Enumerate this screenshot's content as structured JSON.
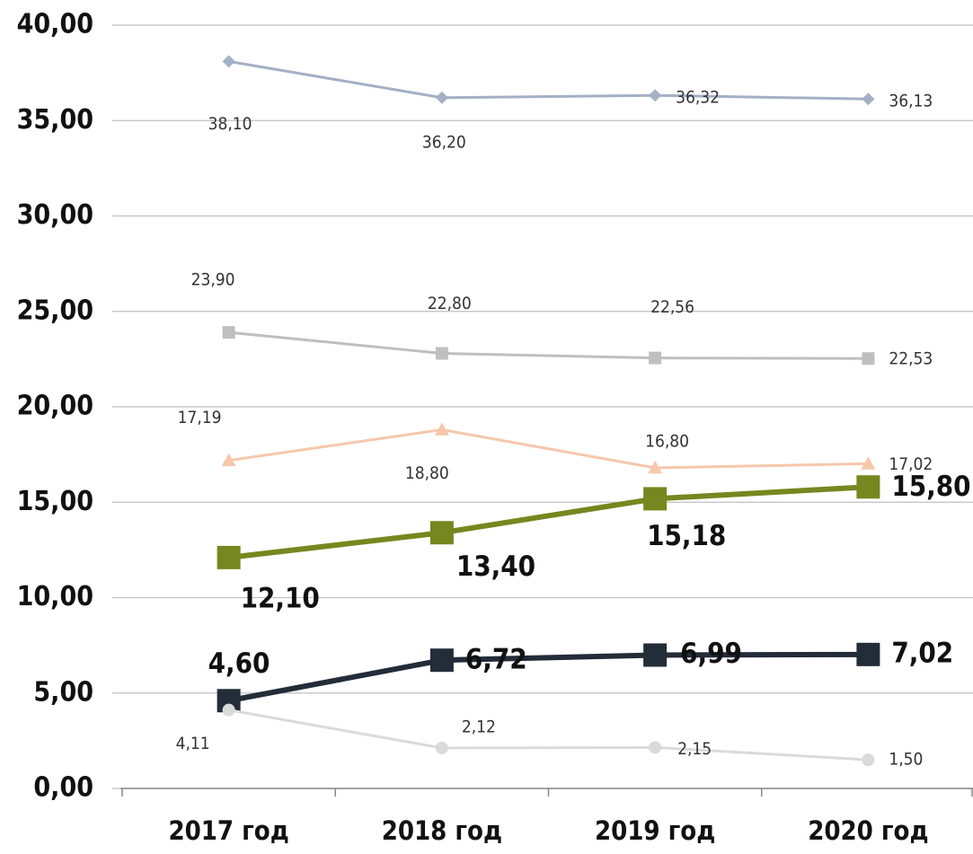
{
  "chart_data": {
    "type": "line",
    "categories": [
      "2017 год",
      "2018 год",
      "2019 год",
      "2020 год"
    ],
    "ylim": [
      0,
      40
    ],
    "yticks": [
      {
        "value": 0,
        "label": "0,00"
      },
      {
        "value": 5,
        "label": "5,00"
      },
      {
        "value": 10,
        "label": "10,00"
      },
      {
        "value": 15,
        "label": "15,00"
      },
      {
        "value": 20,
        "label": "20,00"
      },
      {
        "value": 25,
        "label": "25,00"
      },
      {
        "value": 30,
        "label": "30,00"
      },
      {
        "value": 35,
        "label": "35,00"
      },
      {
        "value": 40,
        "label": "40,00"
      }
    ],
    "grid": true,
    "series": [
      {
        "color": "#a3b0c6",
        "marker": "diamond",
        "values": [
          38.1,
          36.2,
          36.32,
          36.13
        ],
        "value_labels": [
          "38,10",
          "36,20",
          "36,32",
          "36,13"
        ]
      },
      {
        "color": "#bfbfbf",
        "marker": "square",
        "values": [
          23.9,
          22.8,
          22.56,
          22.53
        ],
        "value_labels": [
          "23,90",
          "22,80",
          "22,56",
          "22,53"
        ]
      },
      {
        "color": "#f6c7ab",
        "marker": "triangle",
        "values": [
          17.19,
          18.8,
          16.8,
          17.02
        ],
        "value_labels": [
          "17,19",
          "18,80",
          "16,80",
          "17,02"
        ]
      },
      {
        "color": "#77871f",
        "marker": "square",
        "values": [
          12.1,
          13.4,
          15.18,
          15.8
        ],
        "value_labels": [
          "12,10",
          "13,40",
          "15,18",
          "15,80"
        ]
      },
      {
        "color": "#232c39",
        "marker": "square",
        "values": [
          4.6,
          6.72,
          6.99,
          7.02
        ],
        "value_labels": [
          "4,60",
          "6,72",
          "6,99",
          "7,02"
        ]
      },
      {
        "color": "#dadada",
        "marker": "circle",
        "values": [
          4.11,
          2.12,
          2.15,
          1.5
        ],
        "value_labels": [
          "4,11",
          "2,12",
          "2,15",
          "1,50"
        ]
      }
    ]
  }
}
